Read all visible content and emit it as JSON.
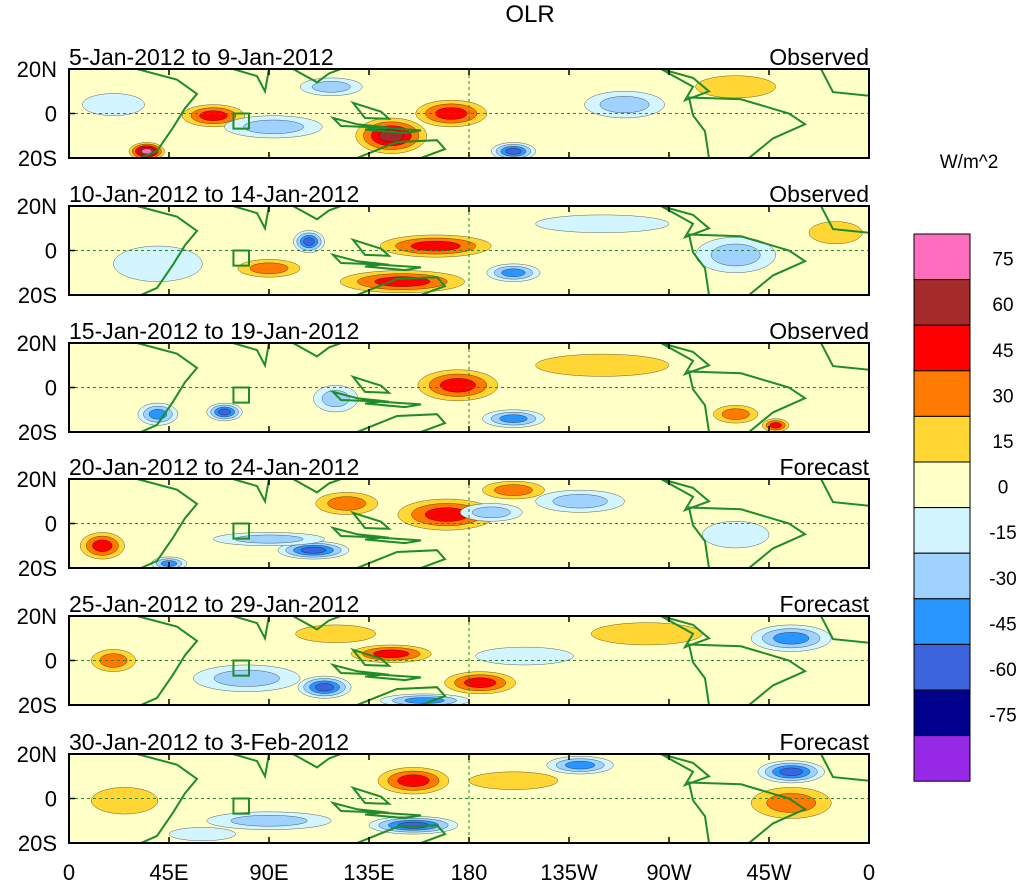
{
  "title": "OLR",
  "colorbar": {
    "units": "W/m^2",
    "labels": [
      "75",
      "60",
      "45",
      "30",
      "15",
      "0",
      "-15",
      "-30",
      "-45",
      "-60",
      "-75"
    ],
    "colors": [
      "#ff6ebe",
      "#a52a2a",
      "#ff0000",
      "#ff7a00",
      "#ffd633",
      "#ffffc8",
      "#d2f5ff",
      "#9fd2ff",
      "#2996ff",
      "#3c64dc",
      "#00008c",
      "#9628e6"
    ]
  },
  "x_ticks": [
    "0",
    "45E",
    "90E",
    "135E",
    "180",
    "135W",
    "90W",
    "45W",
    "0"
  ],
  "y_ticks": [
    "20N",
    "0",
    "20S"
  ],
  "panels": [
    {
      "dates": "5-Jan-2012 to 9-Jan-2012",
      "kind": "Observed"
    },
    {
      "dates": "10-Jan-2012 to 14-Jan-2012",
      "kind": "Observed"
    },
    {
      "dates": "15-Jan-2012 to 19-Jan-2012",
      "kind": "Observed"
    },
    {
      "dates": "20-Jan-2012 to 24-Jan-2012",
      "kind": "Forecast"
    },
    {
      "dates": "25-Jan-2012 to 29-Jan-2012",
      "kind": "Forecast"
    },
    {
      "dates": "30-Jan-2012 to 3-Feb-2012",
      "kind": "Forecast"
    }
  ],
  "anomaly_features": [
    [
      {
        "lon": 65,
        "lat": -1,
        "rlon": 14,
        "rlat": 5,
        "level": 3
      },
      {
        "lon": 35,
        "lat": -17,
        "rlon": 8,
        "rlat": 4,
        "level": 5
      },
      {
        "lon": 145,
        "lat": -10,
        "rlon": 16,
        "rlat": 8,
        "level": 4
      },
      {
        "lon": 172,
        "lat": 0,
        "rlon": 16,
        "rlat": 6,
        "level": 3
      },
      {
        "lon": 200,
        "lat": -17,
        "rlon": 10,
        "rlat": 4,
        "level": -4
      },
      {
        "lon": 92,
        "lat": -6,
        "rlon": 22,
        "rlat": 5,
        "level": -2
      },
      {
        "lon": 118,
        "lat": 12,
        "rlon": 14,
        "rlat": 4,
        "level": -2
      },
      {
        "lon": 250,
        "lat": 4,
        "rlon": 18,
        "rlat": 6,
        "level": -2
      },
      {
        "lon": 300,
        "lat": 12,
        "rlon": 18,
        "rlat": 5,
        "level": 1
      },
      {
        "lon": 20,
        "lat": 4,
        "rlon": 14,
        "rlat": 5,
        "level": -1
      }
    ],
    [
      {
        "lon": 165,
        "lat": 2,
        "rlon": 25,
        "rlat": 5,
        "level": 3
      },
      {
        "lon": 150,
        "lat": -14,
        "rlon": 28,
        "rlat": 5,
        "level": 3
      },
      {
        "lon": 108,
        "lat": 4,
        "rlon": 7,
        "rlat": 5,
        "level": -4
      },
      {
        "lon": 200,
        "lat": -10,
        "rlon": 12,
        "rlat": 4,
        "level": -3
      },
      {
        "lon": 240,
        "lat": 12,
        "rlon": 30,
        "rlat": 4,
        "level": -1
      },
      {
        "lon": 300,
        "lat": -2,
        "rlon": 18,
        "rlat": 8,
        "level": -2
      },
      {
        "lon": 40,
        "lat": -6,
        "rlon": 20,
        "rlat": 8,
        "level": -1
      },
      {
        "lon": 90,
        "lat": -8,
        "rlon": 14,
        "rlat": 4,
        "level": 2
      },
      {
        "lon": 345,
        "lat": 8,
        "rlon": 12,
        "rlat": 5,
        "level": 1
      }
    ],
    [
      {
        "lon": 175,
        "lat": 1,
        "rlon": 18,
        "rlat": 7,
        "level": 3
      },
      {
        "lon": 70,
        "lat": -11,
        "rlon": 8,
        "rlat": 4,
        "level": -4
      },
      {
        "lon": 40,
        "lat": -12,
        "rlon": 9,
        "rlat": 5,
        "level": -3
      },
      {
        "lon": 200,
        "lat": -14,
        "rlon": 14,
        "rlat": 4,
        "level": -3
      },
      {
        "lon": 120,
        "lat": -5,
        "rlon": 10,
        "rlat": 6,
        "level": -2
      },
      {
        "lon": 318,
        "lat": -17,
        "rlon": 6,
        "rlat": 3,
        "level": 3
      },
      {
        "lon": 300,
        "lat": -12,
        "rlon": 10,
        "rlat": 4,
        "level": 2
      },
      {
        "lon": 240,
        "lat": 10,
        "rlon": 30,
        "rlat": 5,
        "level": 1
      }
    ],
    [
      {
        "lon": 170,
        "lat": 4,
        "rlon": 22,
        "rlat": 7,
        "level": 3
      },
      {
        "lon": 125,
        "lat": 9,
        "rlon": 14,
        "rlat": 5,
        "level": 2
      },
      {
        "lon": 110,
        "lat": -12,
        "rlon": 16,
        "rlat": 4,
        "level": -4
      },
      {
        "lon": 90,
        "lat": -7,
        "rlon": 25,
        "rlat": 3,
        "level": -2
      },
      {
        "lon": 190,
        "lat": 5,
        "rlon": 14,
        "rlat": 4,
        "level": -2
      },
      {
        "lon": 230,
        "lat": 10,
        "rlon": 20,
        "rlat": 5,
        "level": -2
      },
      {
        "lon": 200,
        "lat": 15,
        "rlon": 14,
        "rlat": 4,
        "level": 2
      },
      {
        "lon": 15,
        "lat": -10,
        "rlon": 10,
        "rlat": 6,
        "level": 3
      },
      {
        "lon": 45,
        "lat": -18,
        "rlon": 8,
        "rlat": 3,
        "level": -3
      },
      {
        "lon": 300,
        "lat": -5,
        "rlon": 15,
        "rlat": 6,
        "level": -1
      }
    ],
    [
      {
        "lon": 115,
        "lat": -12,
        "rlon": 12,
        "rlat": 5,
        "level": -4
      },
      {
        "lon": 185,
        "lat": -10,
        "rlon": 16,
        "rlat": 5,
        "level": 3
      },
      {
        "lon": 145,
        "lat": 3,
        "rlon": 18,
        "rlat": 4,
        "level": 3
      },
      {
        "lon": 120,
        "lat": 12,
        "rlon": 18,
        "rlat": 4,
        "level": 1
      },
      {
        "lon": 205,
        "lat": 2,
        "rlon": 22,
        "rlat": 4,
        "level": -1
      },
      {
        "lon": 80,
        "lat": -8,
        "rlon": 24,
        "rlat": 6,
        "level": -2
      },
      {
        "lon": 20,
        "lat": 0,
        "rlon": 10,
        "rlat": 5,
        "level": 2
      },
      {
        "lon": 325,
        "lat": 10,
        "rlon": 18,
        "rlat": 6,
        "level": -3
      },
      {
        "lon": 160,
        "lat": -18,
        "rlon": 20,
        "rlat": 3,
        "level": -3
      },
      {
        "lon": 260,
        "lat": 12,
        "rlon": 25,
        "rlat": 5,
        "level": 1
      }
    ],
    [
      {
        "lon": 155,
        "lat": 8,
        "rlon": 16,
        "rlat": 6,
        "level": 3
      },
      {
        "lon": 155,
        "lat": -12,
        "rlon": 20,
        "rlat": 4,
        "level": -4
      },
      {
        "lon": 325,
        "lat": 12,
        "rlon": 15,
        "rlat": 5,
        "level": -4
      },
      {
        "lon": 325,
        "lat": -2,
        "rlon": 18,
        "rlat": 7,
        "level": 2
      },
      {
        "lon": 230,
        "lat": 15,
        "rlon": 15,
        "rlat": 4,
        "level": -3
      },
      {
        "lon": 90,
        "lat": -10,
        "rlon": 28,
        "rlat": 4,
        "level": -2
      },
      {
        "lon": 25,
        "lat": -1,
        "rlon": 15,
        "rlat": 6,
        "level": 1
      },
      {
        "lon": 200,
        "lat": 8,
        "rlon": 20,
        "rlat": 4,
        "level": 1
      },
      {
        "lon": 60,
        "lat": -16,
        "rlon": 15,
        "rlat": 3,
        "level": -1
      }
    ]
  ]
}
